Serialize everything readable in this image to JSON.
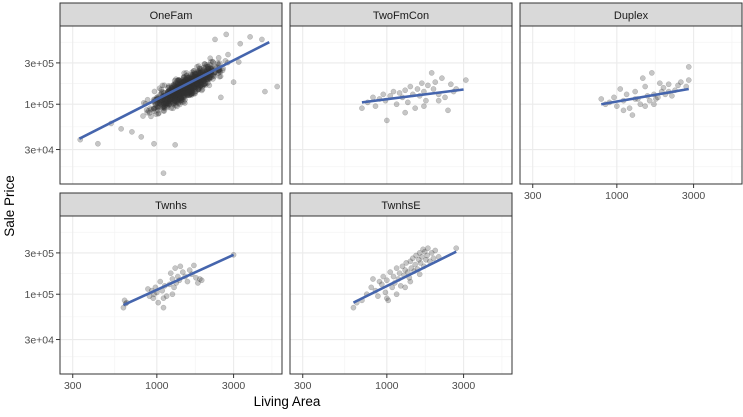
{
  "chart_data": {
    "type": "scatter",
    "xlabel": "Living Area",
    "ylabel": "Sale Price",
    "x_scale": "log10",
    "y_scale": "log10",
    "xlim": [
      250,
      6000
    ],
    "ylim": [
      12000,
      800000
    ],
    "x_ticks": [
      {
        "value": 300,
        "label": "300"
      },
      {
        "value": 1000,
        "label": "1000"
      },
      {
        "value": 3000,
        "label": "3000"
      }
    ],
    "y_ticks": [
      {
        "value": 30000,
        "label": "3e+04"
      },
      {
        "value": 100000,
        "label": "1e+05"
      },
      {
        "value": 300000,
        "label": "3e+05"
      }
    ],
    "grid": true,
    "colors": {
      "points": "#333333",
      "fit_line": "#4565ad",
      "strip_fill": "#d9d9d9",
      "panel_border": "#333333",
      "grid": "#ebebeb"
    },
    "panels": [
      {
        "name": "OneFam",
        "fit": {
          "x": [
            330,
            5000
          ],
          "y": [
            40000,
            520000
          ]
        },
        "cloud": {
          "x_range": [
            480,
            3300
          ],
          "center_x": 1500,
          "slope": 1.05,
          "intercept_y": 155000,
          "spread": 0.16,
          "n": 900
        },
        "points": [
          {
            "x": 334,
            "y": 39000
          },
          {
            "x": 430,
            "y": 35000
          },
          {
            "x": 520,
            "y": 60000
          },
          {
            "x": 1100,
            "y": 16000
          },
          {
            "x": 960,
            "y": 35000
          },
          {
            "x": 1300,
            "y": 34000
          },
          {
            "x": 4500,
            "y": 560000
          },
          {
            "x": 5600,
            "y": 160000
          },
          {
            "x": 4700,
            "y": 140000
          },
          {
            "x": 3000,
            "y": 180000
          },
          {
            "x": 2500,
            "y": 120000
          },
          {
            "x": 3300,
            "y": 500000
          },
          {
            "x": 3800,
            "y": 600000
          },
          {
            "x": 2700,
            "y": 640000
          },
          {
            "x": 2300,
            "y": 560000
          },
          {
            "x": 600,
            "y": 52000
          },
          {
            "x": 700,
            "y": 48000
          },
          {
            "x": 800,
            "y": 42000
          }
        ]
      },
      {
        "name": "TwoFmCon",
        "fit": {
          "x": [
            700,
            3000
          ],
          "y": [
            105000,
            148000
          ]
        },
        "points": [
          {
            "x": 700,
            "y": 90000
          },
          {
            "x": 760,
            "y": 105000
          },
          {
            "x": 820,
            "y": 120000
          },
          {
            "x": 850,
            "y": 95000
          },
          {
            "x": 900,
            "y": 115000
          },
          {
            "x": 950,
            "y": 130000
          },
          {
            "x": 980,
            "y": 110000
          },
          {
            "x": 1000,
            "y": 65000
          },
          {
            "x": 1050,
            "y": 125000
          },
          {
            "x": 1100,
            "y": 140000
          },
          {
            "x": 1150,
            "y": 100000
          },
          {
            "x": 1200,
            "y": 135000
          },
          {
            "x": 1250,
            "y": 120000
          },
          {
            "x": 1300,
            "y": 145000
          },
          {
            "x": 1350,
            "y": 105000
          },
          {
            "x": 1400,
            "y": 160000
          },
          {
            "x": 1450,
            "y": 130000
          },
          {
            "x": 1500,
            "y": 90000
          },
          {
            "x": 1550,
            "y": 150000
          },
          {
            "x": 1600,
            "y": 125000
          },
          {
            "x": 1650,
            "y": 175000
          },
          {
            "x": 1700,
            "y": 140000
          },
          {
            "x": 1750,
            "y": 110000
          },
          {
            "x": 1800,
            "y": 165000
          },
          {
            "x": 1900,
            "y": 230000
          },
          {
            "x": 1950,
            "y": 150000
          },
          {
            "x": 2000,
            "y": 180000
          },
          {
            "x": 2100,
            "y": 130000
          },
          {
            "x": 2200,
            "y": 200000
          },
          {
            "x": 2300,
            "y": 120000
          },
          {
            "x": 2500,
            "y": 170000
          },
          {
            "x": 2600,
            "y": 140000
          },
          {
            "x": 2700,
            "y": 150000
          },
          {
            "x": 3100,
            "y": 190000
          },
          {
            "x": 2100,
            "y": 110000
          },
          {
            "x": 1300,
            "y": 80000
          },
          {
            "x": 1700,
            "y": 95000
          },
          {
            "x": 2400,
            "y": 85000
          }
        ]
      },
      {
        "name": "Duplex",
        "fit": {
          "x": [
            800,
            2800
          ],
          "y": [
            100000,
            150000
          ]
        },
        "points": [
          {
            "x": 800,
            "y": 115000
          },
          {
            "x": 850,
            "y": 100000
          },
          {
            "x": 900,
            "y": 105000
          },
          {
            "x": 960,
            "y": 120000
          },
          {
            "x": 1000,
            "y": 95000
          },
          {
            "x": 1050,
            "y": 150000
          },
          {
            "x": 1100,
            "y": 110000
          },
          {
            "x": 1150,
            "y": 130000
          },
          {
            "x": 1200,
            "y": 90000
          },
          {
            "x": 1250,
            "y": 75000
          },
          {
            "x": 1300,
            "y": 140000
          },
          {
            "x": 1350,
            "y": 115000
          },
          {
            "x": 1400,
            "y": 100000
          },
          {
            "x": 1450,
            "y": 200000
          },
          {
            "x": 1500,
            "y": 160000
          },
          {
            "x": 1550,
            "y": 125000
          },
          {
            "x": 1600,
            "y": 110000
          },
          {
            "x": 1650,
            "y": 230000
          },
          {
            "x": 1700,
            "y": 130000
          },
          {
            "x": 1750,
            "y": 115000
          },
          {
            "x": 1800,
            "y": 120000
          },
          {
            "x": 1850,
            "y": 175000
          },
          {
            "x": 1900,
            "y": 140000
          },
          {
            "x": 1950,
            "y": 155000
          },
          {
            "x": 2000,
            "y": 130000
          },
          {
            "x": 2100,
            "y": 170000
          },
          {
            "x": 2200,
            "y": 125000
          },
          {
            "x": 2300,
            "y": 145000
          },
          {
            "x": 2400,
            "y": 165000
          },
          {
            "x": 2500,
            "y": 180000
          },
          {
            "x": 2700,
            "y": 160000
          },
          {
            "x": 2800,
            "y": 270000
          },
          {
            "x": 2800,
            "y": 190000
          },
          {
            "x": 1500,
            "y": 95000
          },
          {
            "x": 1700,
            "y": 100000
          },
          {
            "x": 2100,
            "y": 140000
          },
          {
            "x": 1300,
            "y": 115000
          },
          {
            "x": 1100,
            "y": 85000
          }
        ]
      },
      {
        "name": "Twnhs",
        "fit": {
          "x": [
            620,
            3000
          ],
          "y": [
            75000,
            285000
          ]
        },
        "points": [
          {
            "x": 620,
            "y": 70000
          },
          {
            "x": 630,
            "y": 85000
          },
          {
            "x": 640,
            "y": 78000
          },
          {
            "x": 650,
            "y": 80000
          },
          {
            "x": 880,
            "y": 115000
          },
          {
            "x": 900,
            "y": 95000
          },
          {
            "x": 930,
            "y": 110000
          },
          {
            "x": 950,
            "y": 90000
          },
          {
            "x": 960,
            "y": 100000
          },
          {
            "x": 980,
            "y": 120000
          },
          {
            "x": 1000,
            "y": 105000
          },
          {
            "x": 1020,
            "y": 80000
          },
          {
            "x": 1050,
            "y": 140000
          },
          {
            "x": 1080,
            "y": 110000
          },
          {
            "x": 1100,
            "y": 70000
          },
          {
            "x": 1120,
            "y": 125000
          },
          {
            "x": 1150,
            "y": 95000
          },
          {
            "x": 1200,
            "y": 130000
          },
          {
            "x": 1220,
            "y": 175000
          },
          {
            "x": 1250,
            "y": 150000
          },
          {
            "x": 1280,
            "y": 120000
          },
          {
            "x": 1300,
            "y": 200000
          },
          {
            "x": 1320,
            "y": 135000
          },
          {
            "x": 1350,
            "y": 160000
          },
          {
            "x": 1380,
            "y": 145000
          },
          {
            "x": 1400,
            "y": 210000
          },
          {
            "x": 1450,
            "y": 180000
          },
          {
            "x": 1500,
            "y": 160000
          },
          {
            "x": 1550,
            "y": 140000
          },
          {
            "x": 1600,
            "y": 190000
          },
          {
            "x": 1650,
            "y": 170000
          },
          {
            "x": 1700,
            "y": 215000
          },
          {
            "x": 1750,
            "y": 155000
          },
          {
            "x": 1800,
            "y": 135000
          },
          {
            "x": 1850,
            "y": 150000
          },
          {
            "x": 1900,
            "y": 145000
          },
          {
            "x": 3000,
            "y": 285000
          },
          {
            "x": 1100,
            "y": 90000
          },
          {
            "x": 1250,
            "y": 100000
          }
        ]
      },
      {
        "name": "TwnhsE",
        "fit": {
          "x": [
            620,
            2700
          ],
          "y": [
            80000,
            310000
          ]
        },
        "points": [
          {
            "x": 620,
            "y": 70000
          },
          {
            "x": 650,
            "y": 80000
          },
          {
            "x": 700,
            "y": 85000
          },
          {
            "x": 750,
            "y": 100000
          },
          {
            "x": 800,
            "y": 120000
          },
          {
            "x": 820,
            "y": 150000
          },
          {
            "x": 850,
            "y": 110000
          },
          {
            "x": 880,
            "y": 95000
          },
          {
            "x": 900,
            "y": 140000
          },
          {
            "x": 930,
            "y": 130000
          },
          {
            "x": 950,
            "y": 160000
          },
          {
            "x": 980,
            "y": 105000
          },
          {
            "x": 1000,
            "y": 145000
          },
          {
            "x": 1020,
            "y": 85000
          },
          {
            "x": 1050,
            "y": 180000
          },
          {
            "x": 1080,
            "y": 120000
          },
          {
            "x": 1100,
            "y": 160000
          },
          {
            "x": 1120,
            "y": 135000
          },
          {
            "x": 1150,
            "y": 200000
          },
          {
            "x": 1180,
            "y": 150000
          },
          {
            "x": 1200,
            "y": 175000
          },
          {
            "x": 1220,
            "y": 125000
          },
          {
            "x": 1250,
            "y": 210000
          },
          {
            "x": 1280,
            "y": 165000
          },
          {
            "x": 1300,
            "y": 190000
          },
          {
            "x": 1320,
            "y": 230000
          },
          {
            "x": 1350,
            "y": 180000
          },
          {
            "x": 1380,
            "y": 155000
          },
          {
            "x": 1400,
            "y": 240000
          },
          {
            "x": 1420,
            "y": 200000
          },
          {
            "x": 1450,
            "y": 260000
          },
          {
            "x": 1480,
            "y": 185000
          },
          {
            "x": 1500,
            "y": 220000
          },
          {
            "x": 1520,
            "y": 280000
          },
          {
            "x": 1550,
            "y": 195000
          },
          {
            "x": 1580,
            "y": 250000
          },
          {
            "x": 1600,
            "y": 300000
          },
          {
            "x": 1620,
            "y": 230000
          },
          {
            "x": 1650,
            "y": 270000
          },
          {
            "x": 1680,
            "y": 330000
          },
          {
            "x": 1700,
            "y": 210000
          },
          {
            "x": 1720,
            "y": 310000
          },
          {
            "x": 1750,
            "y": 250000
          },
          {
            "x": 1780,
            "y": 280000
          },
          {
            "x": 1800,
            "y": 340000
          },
          {
            "x": 1850,
            "y": 240000
          },
          {
            "x": 1900,
            "y": 300000
          },
          {
            "x": 1950,
            "y": 260000
          },
          {
            "x": 2000,
            "y": 320000
          },
          {
            "x": 2100,
            "y": 270000
          },
          {
            "x": 2700,
            "y": 340000
          },
          {
            "x": 1300,
            "y": 120000
          },
          {
            "x": 1150,
            "y": 100000
          },
          {
            "x": 1400,
            "y": 140000
          },
          {
            "x": 1600,
            "y": 170000
          },
          {
            "x": 1000,
            "y": 90000
          }
        ]
      }
    ]
  }
}
